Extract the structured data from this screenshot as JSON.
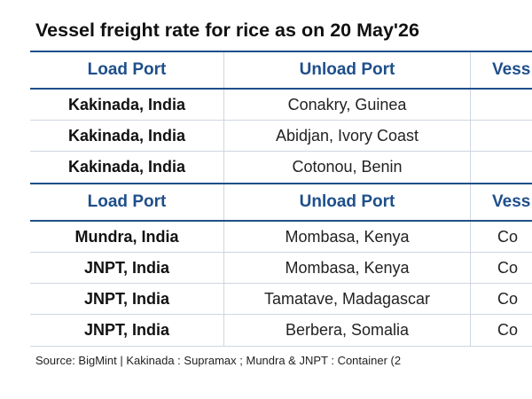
{
  "title": "Vessel freight rate for rice as on 20 May'26",
  "header1": {
    "load_port": "Load Port",
    "unload_port": "Unload Port",
    "vessel": "Vess"
  },
  "rows1": [
    {
      "load_port": "Kakinada, India",
      "unload_port": "Conakry, Guinea",
      "vessel": ""
    },
    {
      "load_port": "Kakinada, India",
      "unload_port": "Abidjan, Ivory Coast",
      "vessel": ""
    },
    {
      "load_port": "Kakinada, India",
      "unload_port": "Cotonou, Benin",
      "vessel": ""
    }
  ],
  "header2": {
    "load_port": "Load Port",
    "unload_port": "Unload Port",
    "vessel": "Vess"
  },
  "rows2": [
    {
      "load_port": "Mundra, India",
      "unload_port": "Mombasa, Kenya",
      "vessel": "Co"
    },
    {
      "load_port": "JNPT, India",
      "unload_port": "Mombasa, Kenya",
      "vessel": "Co"
    },
    {
      "load_port": "JNPT, India",
      "unload_port": "Tamatave, Madagascar",
      "vessel": "Co"
    },
    {
      "load_port": "JNPT, India",
      "unload_port": "Berbera, Somalia",
      "vessel": "Co"
    }
  ],
  "source": "Source: BigMint | Kakinada : Supramax ; Mundra & JNPT : Container (2",
  "colors": {
    "header_text": "#1e4f8a",
    "header_rule": "#1e4f8a",
    "row_rule": "#cfd6e0"
  }
}
